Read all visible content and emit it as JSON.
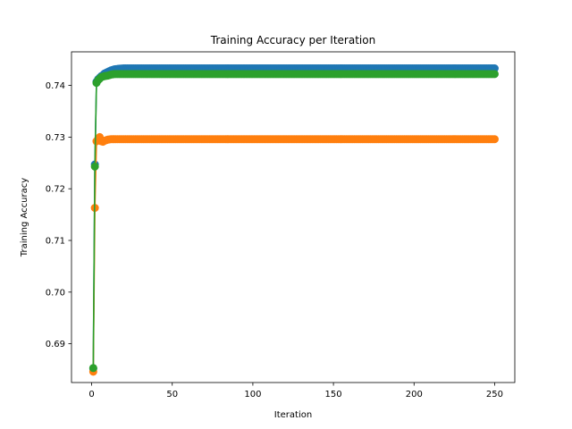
{
  "chart_data": {
    "type": "line",
    "title": "Training Accuracy per Iteration",
    "xlabel": "Iteration",
    "ylabel": "Training Accuracy",
    "xlim": [
      -12.5,
      262.5
    ],
    "ylim": [
      0.6825,
      0.7465
    ],
    "xticks": [
      0,
      50,
      100,
      150,
      200,
      250
    ],
    "yticks": [
      0.69,
      0.7,
      0.71,
      0.72,
      0.73,
      0.74
    ],
    "ytick_labels": [
      "0.69",
      "0.70",
      "0.71",
      "0.72",
      "0.73",
      "0.74"
    ],
    "grid": false,
    "legend": "none",
    "markers": true,
    "series": [
      {
        "color": "#1f77b4",
        "x": [
          1,
          2,
          3,
          4,
          5,
          6,
          7,
          8,
          10,
          12,
          14,
          16,
          20,
          30,
          50,
          100,
          150,
          200,
          250
        ],
        "y": [
          0.6852,
          0.7247,
          0.7407,
          0.7412,
          0.7415,
          0.7418,
          0.742,
          0.7423,
          0.7426,
          0.7429,
          0.7431,
          0.7432,
          0.7433,
          0.7433,
          0.7433,
          0.7433,
          0.7433,
          0.7433,
          0.7433
        ]
      },
      {
        "color": "#ff7f0e",
        "x": [
          1,
          2,
          3,
          4,
          5,
          6,
          7,
          8,
          10,
          12,
          14,
          16,
          20,
          30,
          50,
          100,
          150,
          200,
          250
        ],
        "y": [
          0.6846,
          0.7163,
          0.7292,
          0.7296,
          0.73,
          0.7292,
          0.7291,
          0.7293,
          0.7295,
          0.7296,
          0.7296,
          0.7296,
          0.7296,
          0.7296,
          0.7296,
          0.7296,
          0.7296,
          0.7296,
          0.7296
        ]
      },
      {
        "color": "#2ca02c",
        "x": [
          1,
          2,
          3,
          4,
          5,
          6,
          7,
          8,
          10,
          12,
          14,
          16,
          20,
          30,
          50,
          100,
          150,
          200,
          250
        ],
        "y": [
          0.6853,
          0.7243,
          0.7405,
          0.741,
          0.7413,
          0.7416,
          0.7417,
          0.7418,
          0.7419,
          0.7421,
          0.7422,
          0.7422,
          0.7422,
          0.7422,
          0.7422,
          0.7422,
          0.7422,
          0.7422,
          0.7422
        ]
      }
    ]
  }
}
